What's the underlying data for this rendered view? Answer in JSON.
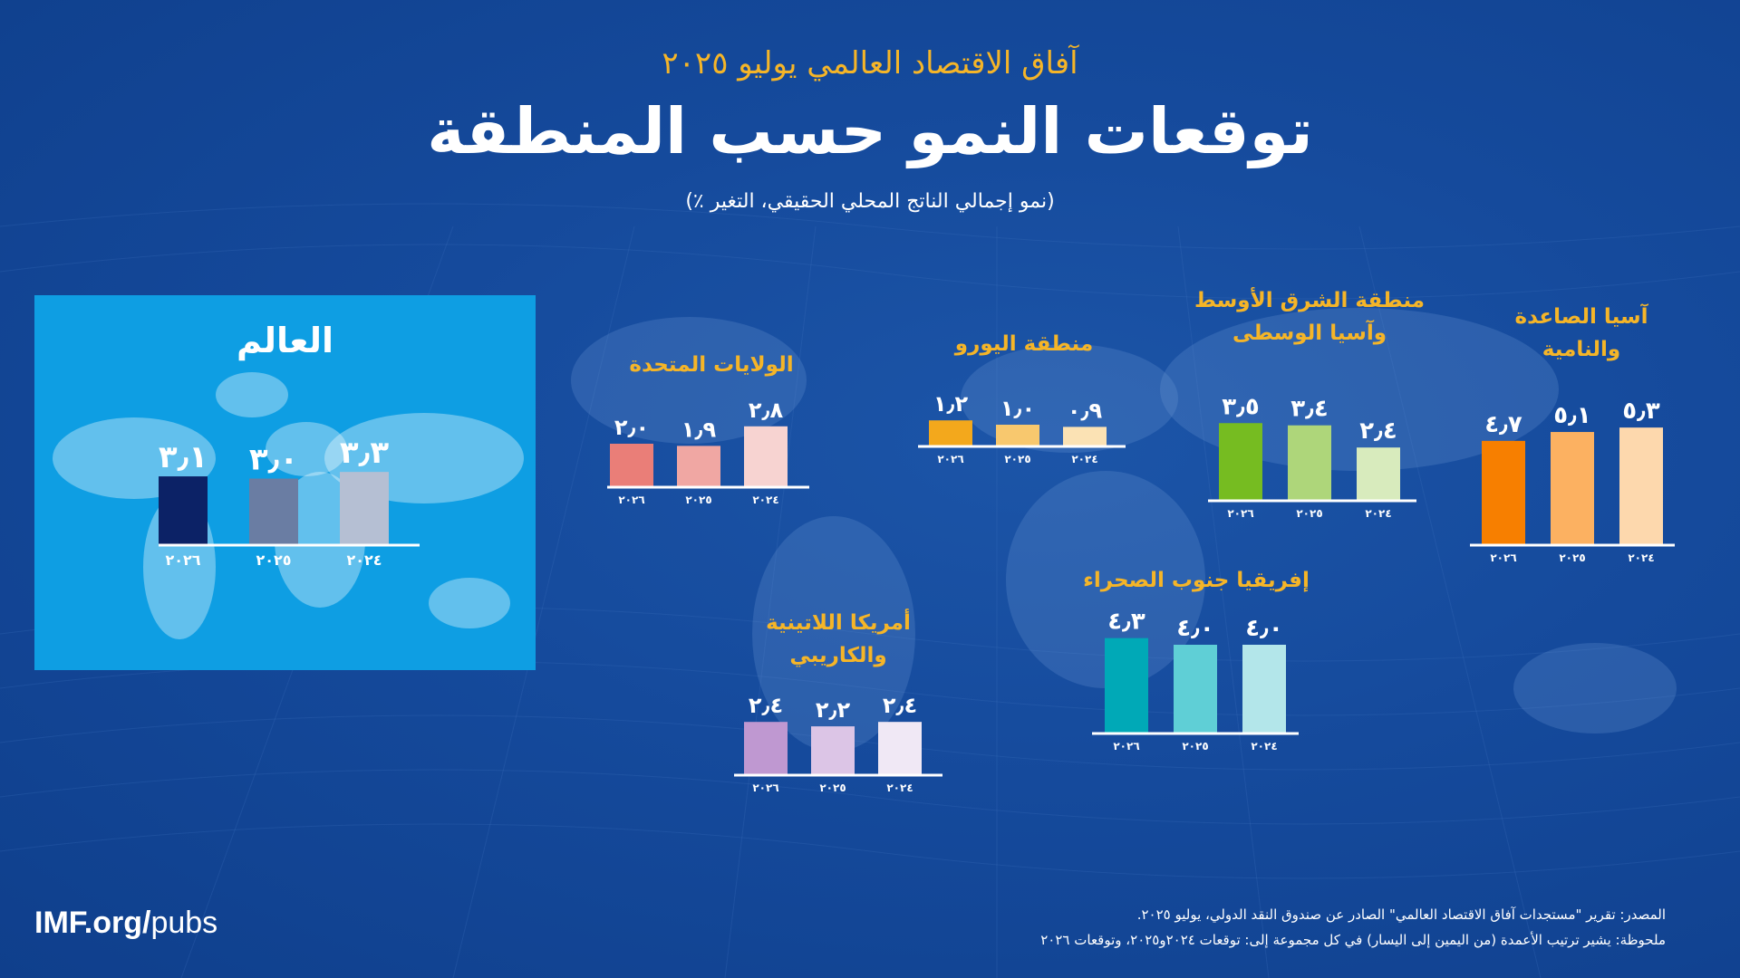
{
  "header": {
    "kicker": "آفاق الاقتصاد العالمي يوليو ٢٠٢٥",
    "title": "توقعات النمو حسب المنطقة",
    "subtitle": "(نمو إجمالي الناتج المحلي الحقيقي، التغير ٪)"
  },
  "chart_data": [
    {
      "type": "bar",
      "id": "world",
      "title": "العالم",
      "categories": [
        "٢٠٢٦",
        "٢٠٢٥",
        "٢٠٢٤"
      ],
      "values": [
        3.1,
        3.0,
        3.3
      ],
      "labels": [
        "٣٫١",
        "٣٫٠",
        "٣٫٣"
      ],
      "colors": [
        "#0c2266",
        "#6a7da3",
        "#b5bfd3"
      ]
    },
    {
      "type": "bar",
      "id": "us",
      "title": "الولايات المتحدة",
      "categories": [
        "٢٠٢٦",
        "٢٠٢٥",
        "٢٠٢٤"
      ],
      "values": [
        2.0,
        1.9,
        2.8
      ],
      "labels": [
        "٢٫٠",
        "١٫٩",
        "٢٫٨"
      ],
      "colors": [
        "#ea7e78",
        "#f0a7a3",
        "#f7d3d1"
      ]
    },
    {
      "type": "bar",
      "id": "euro",
      "title": "منطقة اليورو",
      "categories": [
        "٢٠٢٦",
        "٢٠٢٥",
        "٢٠٢٤"
      ],
      "values": [
        1.2,
        1.0,
        0.9
      ],
      "labels": [
        "١٫٢",
        "١٫٠",
        "٠٫٩"
      ],
      "colors": [
        "#f3a81c",
        "#f8c86e",
        "#fbe2b4"
      ]
    },
    {
      "type": "bar",
      "id": "mecca",
      "title": [
        "منطقة الشرق الأوسط",
        "وآسيا الوسطى"
      ],
      "categories": [
        "٢٠٢٦",
        "٢٠٢٥",
        "٢٠٢٤"
      ],
      "values": [
        3.5,
        3.4,
        2.4
      ],
      "labels": [
        "٣٫٥",
        "٣٫٤",
        "٢٫٤"
      ],
      "colors": [
        "#76bc21",
        "#aed67a",
        "#d8ebbd"
      ]
    },
    {
      "type": "bar",
      "id": "asia",
      "title": [
        "آسيا الصاعدة",
        "والنامية"
      ],
      "categories": [
        "٢٠٢٦",
        "٢٠٢٥",
        "٢٠٢٤"
      ],
      "values": [
        4.7,
        5.1,
        5.3
      ],
      "labels": [
        "٤٫٧",
        "٥٫١",
        "٥٫٣"
      ],
      "colors": [
        "#f77f00",
        "#fcb161",
        "#fdd8ad"
      ]
    },
    {
      "type": "bar",
      "id": "ssa",
      "title": "إفريقيا جنوب الصحراء",
      "categories": [
        "٢٠٢٦",
        "٢٠٢٥",
        "٢٠٢٤"
      ],
      "values": [
        4.3,
        4.0,
        4.0
      ],
      "labels": [
        "٤٫٣",
        "٤٫٠",
        "٤٫٠"
      ],
      "colors": [
        "#00a9b7",
        "#5fcfd6",
        "#b3e6ea"
      ]
    },
    {
      "type": "bar",
      "id": "latam",
      "title": [
        "أمريكا اللاتينية",
        "والكاريبي"
      ],
      "categories": [
        "٢٠٢٦",
        "٢٠٢٥",
        "٢٠٢٤"
      ],
      "values": [
        2.4,
        2.2,
        2.4
      ],
      "labels": [
        "٢٫٤",
        "٢٫٢",
        "٢٫٤"
      ],
      "colors": [
        "#bf98d1",
        "#dcc5e6",
        "#f0e8f5"
      ]
    }
  ],
  "footer": {
    "logo_bold": "IMF.org/",
    "logo_regular": "pubs",
    "source": "المصدر: تقرير \"مستجدات آفاق الاقتصاد العالمي\" الصادر عن صندوق النقد الدولي، يوليو ٢٠٢٥.",
    "note": "ملحوظة: يشير ترتيب الأعمدة (من اليمين إلى اليسار) في كل مجموعة إلى: توقعات ٢٠٢٤و٢٠٢٥، وتوقعات ٢٠٢٦"
  }
}
